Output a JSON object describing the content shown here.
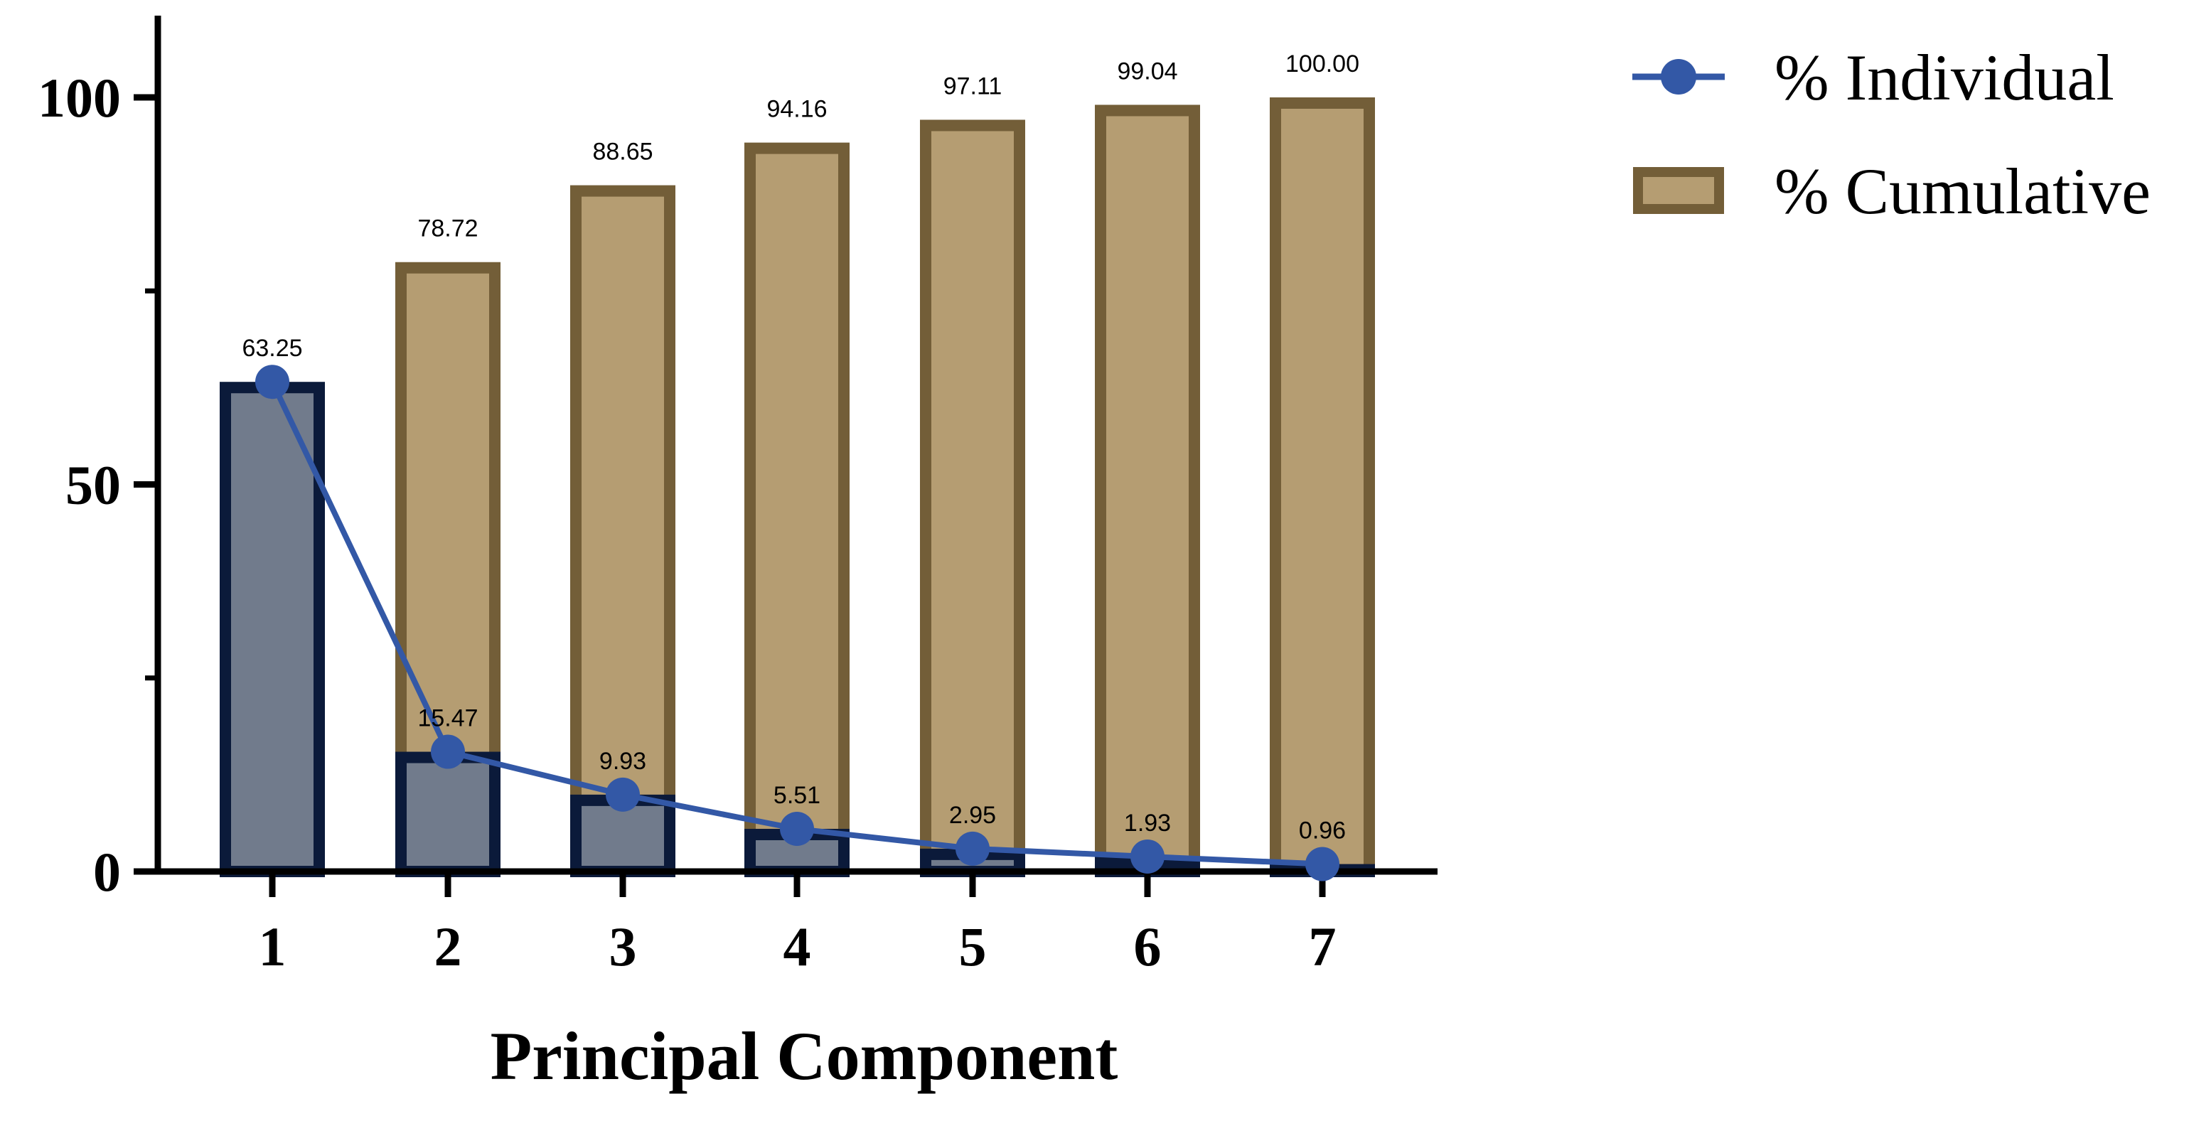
{
  "chart_data": {
    "type": "bar",
    "categories": [
      "1",
      "2",
      "3",
      "4",
      "5",
      "6",
      "7"
    ],
    "series": [
      {
        "name": "% Cumulative",
        "kind": "bar",
        "values": [
          63.25,
          78.72,
          88.65,
          94.16,
          97.11,
          99.04,
          100.0
        ],
        "labels": [
          "",
          "78.72",
          "88.65",
          "94.16",
          "97.11",
          "99.04",
          "100.00"
        ],
        "fill": "#b59d72",
        "stroke": "#735e38"
      },
      {
        "name": "% Individual",
        "kind": "line",
        "values": [
          63.25,
          15.47,
          9.93,
          5.51,
          2.95,
          1.93,
          0.96
        ],
        "labels": [
          "63.25",
          "15.47",
          "9.93",
          "5.51",
          "2.95",
          "1.93",
          "0.96"
        ],
        "bar_fill": "#717b8c",
        "bar_stroke": "#0b1a3a",
        "line_color": "#3358a6"
      }
    ],
    "xlabel": "Principal Component",
    "ylabel": "",
    "ylim": [
      0,
      110
    ],
    "yticks": [
      "0",
      "50",
      "100"
    ],
    "ytick_values": [
      0,
      50,
      100
    ],
    "grid": false,
    "legend_position": "top-right"
  }
}
